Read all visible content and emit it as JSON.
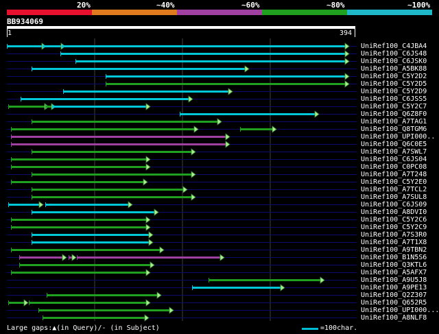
{
  "header": {
    "scale_labels": [
      "20%",
      "~40%",
      "~60%",
      "~80%",
      "~100%"
    ],
    "scale_colors": [
      "#e8112d",
      "#e07a1e",
      "#a040a0",
      "#1fa01f",
      "#1fb8c8"
    ]
  },
  "query": {
    "name": "BB934069",
    "start": "1",
    "end": "394"
  },
  "colors": {
    "cyan": "#00c8d8",
    "green": "#1fa01f",
    "magenta": "#a040a0",
    "arrow_fill": "#a8f08c",
    "grid": "#404040",
    "row_line": "#0a0a6a"
  },
  "hits": [
    {
      "label": "UniRef100_C4JBA4",
      "segs": [
        [
          10,
          62,
          "cyan"
        ],
        [
          62,
          90,
          "cyan"
        ],
        [
          90,
          504,
          "cyan"
        ]
      ]
    },
    {
      "label": "UniRef100_C6JS48",
      "segs": [
        [
          88,
          504,
          "cyan"
        ]
      ]
    },
    {
      "label": "UniRef100_C6JSK0",
      "segs": [
        [
          110,
          504,
          "cyan"
        ]
      ]
    },
    {
      "label": "UniRef100_A5BK88",
      "segs": [
        [
          46,
          358,
          "cyan"
        ]
      ]
    },
    {
      "label": "UniRef100_C5Y2D2",
      "segs": [
        [
          154,
          504,
          "cyan"
        ]
      ]
    },
    {
      "label": "UniRef100_C5Y2D5",
      "segs": [
        [
          154,
          504,
          "green"
        ]
      ]
    },
    {
      "label": "UniRef100_C5Y2D9",
      "segs": [
        [
          92,
          334,
          "cyan"
        ]
      ]
    },
    {
      "label": "UniRef100_C6JSS5",
      "segs": [
        [
          30,
          276,
          "cyan"
        ]
      ]
    },
    {
      "label": "UniRef100_C5Y2C7",
      "segs": [
        [
          12,
          66,
          "green"
        ],
        [
          66,
          76,
          "green"
        ],
        [
          76,
          214,
          "cyan"
        ]
      ]
    },
    {
      "label": "UniRef100_Q6Z8F0",
      "segs": [
        [
          262,
          460,
          "cyan"
        ]
      ]
    },
    {
      "label": "UniRef100_A7TAG1",
      "segs": [
        [
          46,
          318,
          "green"
        ]
      ]
    },
    {
      "label": "UniRef100_Q8TGM6",
      "segs": [
        [
          16,
          284,
          "green"
        ],
        [
          350,
          398,
          "green"
        ]
      ]
    },
    {
      "label": "UniRef100_UPI000..",
      "segs": [
        [
          16,
          330,
          "magenta"
        ]
      ]
    },
    {
      "label": "UniRef100_Q6C0E5",
      "segs": [
        [
          16,
          330,
          "magenta"
        ]
      ]
    },
    {
      "label": "UniRef100_A7SWL7",
      "segs": [
        [
          46,
          280,
          "green"
        ]
      ]
    },
    {
      "label": "UniRef100_C6JS04",
      "segs": [
        [
          16,
          214,
          "green"
        ]
      ]
    },
    {
      "label": "UniRef100_C0PC08",
      "segs": [
        [
          16,
          214,
          "green"
        ]
      ]
    },
    {
      "label": "UniRef100_A7T248",
      "segs": [
        [
          46,
          280,
          "green"
        ]
      ]
    },
    {
      "label": "UniRef100_C5Y2E0",
      "segs": [
        [
          16,
          210,
          "green"
        ]
      ]
    },
    {
      "label": "UniRef100_A7TCL2",
      "segs": [
        [
          46,
          268,
          "green"
        ]
      ]
    },
    {
      "label": "UniRef100_A7SUL8",
      "segs": [
        [
          46,
          280,
          "green"
        ]
      ]
    },
    {
      "label": "UniRef100_C6JS09",
      "segs": [
        [
          12,
          58,
          "cyan"
        ],
        [
          66,
          188,
          "cyan"
        ]
      ]
    },
    {
      "label": "UniRef100_A8DVI0",
      "segs": [
        [
          46,
          226,
          "cyan"
        ]
      ]
    },
    {
      "label": "UniRef100_C5Y2C6",
      "segs": [
        [
          16,
          214,
          "green"
        ]
      ]
    },
    {
      "label": "UniRef100_C5Y2C9",
      "segs": [
        [
          16,
          214,
          "green"
        ]
      ]
    },
    {
      "label": "UniRef100_A7S3R0",
      "segs": [
        [
          46,
          218,
          "cyan"
        ]
      ]
    },
    {
      "label": "UniRef100_A7T1X8",
      "segs": [
        [
          46,
          218,
          "cyan"
        ]
      ]
    },
    {
      "label": "UniRef100_A9TBN2",
      "segs": [
        [
          16,
          234,
          "green"
        ]
      ]
    },
    {
      "label": "UniRef100_B1N5S6",
      "segs": [
        [
          28,
          92,
          "magenta"
        ],
        [
          100,
          106,
          "magenta"
        ],
        [
          112,
          322,
          "magenta"
        ]
      ]
    },
    {
      "label": "UniRef100_Q3KTL6",
      "segs": [
        [
          28,
          220,
          "green"
        ]
      ]
    },
    {
      "label": "UniRef100_A5AFX7",
      "segs": [
        [
          16,
          214,
          "green"
        ]
      ]
    },
    {
      "label": "UniRef100_A9U5J8",
      "segs": [
        [
          304,
          468,
          "green"
        ]
      ]
    },
    {
      "label": "UniRef100_A9PE13",
      "segs": [
        [
          280,
          410,
          "cyan"
        ]
      ]
    },
    {
      "label": "UniRef100_Q2Z307",
      "segs": [
        [
          68,
          230,
          "green"
        ]
      ]
    },
    {
      "label": "UniRef100_Q652R5",
      "segs": [
        [
          12,
          36,
          "green"
        ],
        [
          42,
          214,
          "green"
        ]
      ]
    },
    {
      "label": "UniRef100_UPI000...",
      "segs": [
        [
          56,
          248,
          "green"
        ]
      ]
    },
    {
      "label": "UniRef100_A8NLF8",
      "segs": [
        [
          62,
          212,
          "green"
        ]
      ]
    }
  ],
  "footer": {
    "gaps_text": "Large gaps:▲(in Query)/- (in Subject)",
    "legend_text": "=100char."
  }
}
